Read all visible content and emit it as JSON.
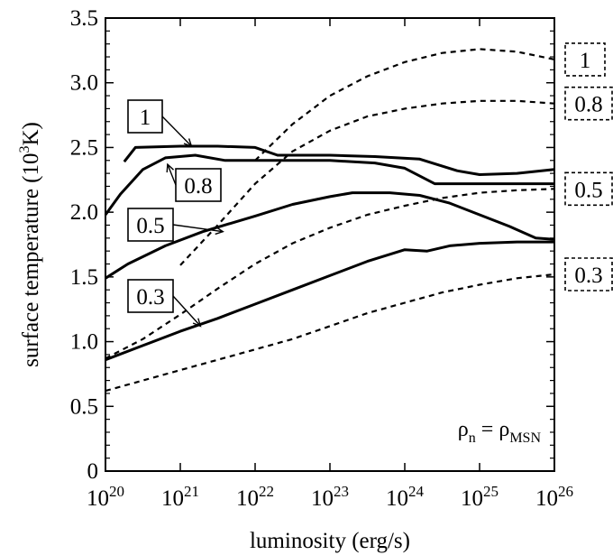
{
  "chart_data": {
    "type": "line",
    "x_scale": "log",
    "xlim": [
      1e+20,
      1e+26
    ],
    "ylim": [
      0,
      3.5
    ],
    "grid": false,
    "xlabel": "luminosity (erg/s)",
    "ylabel_text": "surface temperature (10",
    "ylabel_sup": "3",
    "ylabel_tail": "K)",
    "y_ticks": [
      "0",
      "0.5",
      "1.0",
      "1.5",
      "2.0",
      "2.5",
      "3.0",
      "3.5"
    ],
    "y_tick_values": [
      0,
      0.5,
      1.0,
      1.5,
      2.0,
      2.5,
      3.0,
      3.5
    ],
    "x_tick_exponents": [
      "20",
      "21",
      "22",
      "23",
      "24",
      "25",
      "26"
    ],
    "x_tick_base": "10",
    "annotation_lhs": "ρ",
    "annotation_lhs_sub": "n",
    "annotation_eq": " = ",
    "annotation_rhs": "ρ",
    "annotation_rhs_sub": "MSN",
    "series": [
      {
        "name": "1",
        "style": "solid",
        "points": [
          [
            20.25,
            2.39
          ],
          [
            20.4,
            2.5
          ],
          [
            21.0,
            2.51
          ],
          [
            21.5,
            2.51
          ],
          [
            22.0,
            2.5
          ],
          [
            22.3,
            2.44
          ],
          [
            23.0,
            2.44
          ],
          [
            23.6,
            2.43
          ],
          [
            24.2,
            2.41
          ],
          [
            24.7,
            2.32
          ],
          [
            25.0,
            2.29
          ],
          [
            25.5,
            2.3
          ],
          [
            26.0,
            2.33
          ]
        ]
      },
      {
        "name": "0.8",
        "style": "solid",
        "points": [
          [
            20.0,
            1.98
          ],
          [
            20.2,
            2.14
          ],
          [
            20.5,
            2.33
          ],
          [
            20.8,
            2.42
          ],
          [
            21.2,
            2.44
          ],
          [
            21.6,
            2.4
          ],
          [
            22.5,
            2.4
          ],
          [
            23.0,
            2.4
          ],
          [
            23.6,
            2.38
          ],
          [
            24.0,
            2.34
          ],
          [
            24.4,
            2.22
          ],
          [
            25.0,
            2.22
          ],
          [
            26.0,
            2.22
          ]
        ]
      },
      {
        "name": "0.5",
        "style": "solid",
        "points": [
          [
            20.0,
            1.49
          ],
          [
            20.3,
            1.6
          ],
          [
            20.8,
            1.74
          ],
          [
            21.3,
            1.85
          ],
          [
            22.0,
            1.97
          ],
          [
            22.5,
            2.06
          ],
          [
            23.0,
            2.12
          ],
          [
            23.3,
            2.15
          ],
          [
            23.8,
            2.15
          ],
          [
            24.2,
            2.13
          ],
          [
            24.6,
            2.07
          ],
          [
            25.0,
            1.98
          ],
          [
            25.4,
            1.89
          ],
          [
            25.75,
            1.8
          ],
          [
            26.0,
            1.79
          ]
        ]
      },
      {
        "name": "0.3",
        "style": "solid",
        "points": [
          [
            20.0,
            0.86
          ],
          [
            20.5,
            0.97
          ],
          [
            21.0,
            1.08
          ],
          [
            21.5,
            1.18
          ],
          [
            22.0,
            1.29
          ],
          [
            22.5,
            1.4
          ],
          [
            23.0,
            1.51
          ],
          [
            23.5,
            1.62
          ],
          [
            24.0,
            1.71
          ],
          [
            24.3,
            1.7
          ],
          [
            24.6,
            1.74
          ],
          [
            25.0,
            1.76
          ],
          [
            25.5,
            1.77
          ],
          [
            26.0,
            1.77
          ]
        ]
      },
      {
        "name": "1",
        "style": "dashed",
        "points": [
          [
            22.0,
            2.4
          ],
          [
            22.5,
            2.68
          ],
          [
            23.0,
            2.9
          ],
          [
            23.5,
            3.05
          ],
          [
            24.0,
            3.16
          ],
          [
            24.5,
            3.23
          ],
          [
            25.0,
            3.26
          ],
          [
            25.5,
            3.24
          ],
          [
            26.0,
            3.18
          ]
        ]
      },
      {
        "name": "0.8",
        "style": "dashed",
        "points": [
          [
            21.0,
            1.59
          ],
          [
            21.5,
            1.9
          ],
          [
            22.0,
            2.22
          ],
          [
            22.5,
            2.47
          ],
          [
            23.0,
            2.63
          ],
          [
            23.5,
            2.74
          ],
          [
            24.0,
            2.8
          ],
          [
            24.5,
            2.84
          ],
          [
            25.0,
            2.86
          ],
          [
            25.5,
            2.86
          ],
          [
            26.0,
            2.84
          ]
        ]
      },
      {
        "name": "0.5",
        "style": "dashed",
        "points": [
          [
            20.0,
            0.87
          ],
          [
            20.5,
            1.02
          ],
          [
            21.0,
            1.21
          ],
          [
            21.5,
            1.41
          ],
          [
            22.0,
            1.6
          ],
          [
            22.5,
            1.76
          ],
          [
            23.0,
            1.88
          ],
          [
            23.5,
            1.98
          ],
          [
            24.0,
            2.05
          ],
          [
            24.5,
            2.11
          ],
          [
            25.0,
            2.15
          ],
          [
            25.5,
            2.17
          ],
          [
            26.0,
            2.18
          ]
        ]
      },
      {
        "name": "0.3",
        "style": "dashed",
        "points": [
          [
            20.0,
            0.62
          ],
          [
            20.5,
            0.7
          ],
          [
            21.0,
            0.78
          ],
          [
            21.5,
            0.86
          ],
          [
            22.0,
            0.94
          ],
          [
            22.5,
            1.02
          ],
          [
            23.0,
            1.12
          ],
          [
            23.5,
            1.22
          ],
          [
            24.0,
            1.3
          ],
          [
            24.5,
            1.38
          ],
          [
            25.0,
            1.44
          ],
          [
            25.5,
            1.49
          ],
          [
            26.0,
            1.52
          ]
        ]
      }
    ],
    "solid_labels": [
      {
        "text": "1",
        "ax": 21.15,
        "ay": 2.51
      },
      {
        "text": "0.8",
        "ax": 20.83,
        "ay": 2.37
      },
      {
        "text": "0.5",
        "ax": 21.57,
        "ay": 1.85
      },
      {
        "text": "0.3",
        "ax": 21.27,
        "ay": 1.12
      }
    ],
    "dashed_labels": [
      "1",
      "0.8",
      "0.5",
      "0.3"
    ]
  }
}
